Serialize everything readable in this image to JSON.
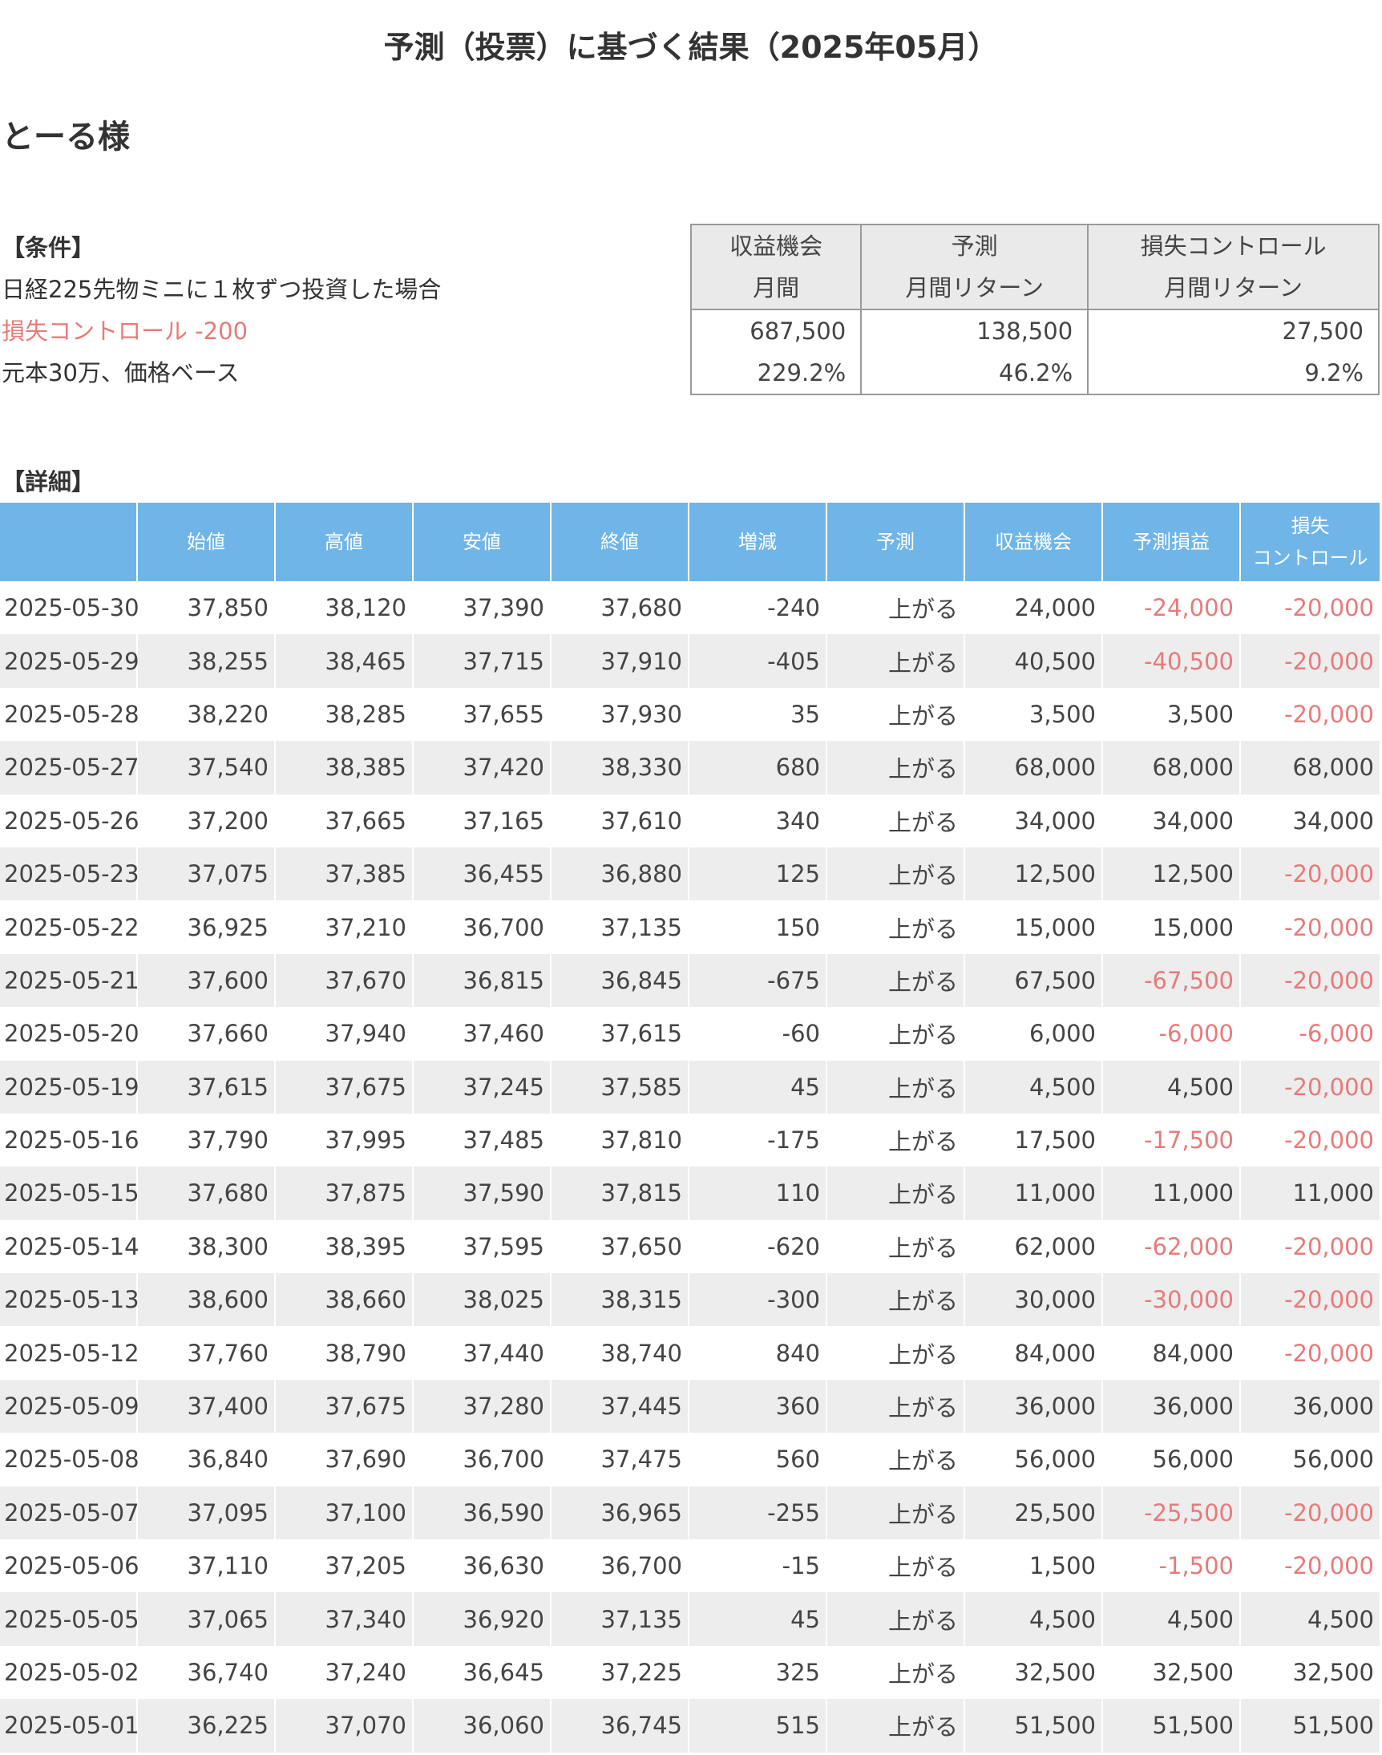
{
  "title": "予測（投票）に基づく結果（2025年05月）",
  "user_name": "とーる様",
  "conditions": {
    "heading": "【条件】",
    "line1": "日経225先物ミニに１枚ずつ投資した場合",
    "line2": "損失コントロール -200",
    "line3": "元本30万、価格ベース"
  },
  "summary": {
    "headers": [
      [
        "収益機会",
        "月間"
      ],
      [
        "予測",
        "月間リターン"
      ],
      [
        "損失コントロール",
        "月間リターン"
      ]
    ],
    "amounts": [
      "687,500",
      "138,500",
      "27,500"
    ],
    "percents": [
      "229.2%",
      "46.2%",
      "9.2%"
    ]
  },
  "detail_heading": "【詳細】",
  "detail_headers": [
    "",
    "始値",
    "高値",
    "安値",
    "終値",
    "増減",
    "予測",
    "収益機会",
    "予測損益",
    "損失\nコントロール"
  ],
  "rows": [
    [
      "2025-05-30",
      "37,850",
      "38,120",
      "37,390",
      "37,680",
      "-240",
      "上がる",
      "24,000",
      "-24,000",
      "-20,000"
    ],
    [
      "2025-05-29",
      "38,255",
      "38,465",
      "37,715",
      "37,910",
      "-405",
      "上がる",
      "40,500",
      "-40,500",
      "-20,000"
    ],
    [
      "2025-05-28",
      "38,220",
      "38,285",
      "37,655",
      "37,930",
      "35",
      "上がる",
      "3,500",
      "3,500",
      "-20,000"
    ],
    [
      "2025-05-27",
      "37,540",
      "38,385",
      "37,420",
      "38,330",
      "680",
      "上がる",
      "68,000",
      "68,000",
      "68,000"
    ],
    [
      "2025-05-26",
      "37,200",
      "37,665",
      "37,165",
      "37,610",
      "340",
      "上がる",
      "34,000",
      "34,000",
      "34,000"
    ],
    [
      "2025-05-23",
      "37,075",
      "37,385",
      "36,455",
      "36,880",
      "125",
      "上がる",
      "12,500",
      "12,500",
      "-20,000"
    ],
    [
      "2025-05-22",
      "36,925",
      "37,210",
      "36,700",
      "37,135",
      "150",
      "上がる",
      "15,000",
      "15,000",
      "-20,000"
    ],
    [
      "2025-05-21",
      "37,600",
      "37,670",
      "36,815",
      "36,845",
      "-675",
      "上がる",
      "67,500",
      "-67,500",
      "-20,000"
    ],
    [
      "2025-05-20",
      "37,660",
      "37,940",
      "37,460",
      "37,615",
      "-60",
      "上がる",
      "6,000",
      "-6,000",
      "-6,000"
    ],
    [
      "2025-05-19",
      "37,615",
      "37,675",
      "37,245",
      "37,585",
      "45",
      "上がる",
      "4,500",
      "4,500",
      "-20,000"
    ],
    [
      "2025-05-16",
      "37,790",
      "37,995",
      "37,485",
      "37,810",
      "-175",
      "上がる",
      "17,500",
      "-17,500",
      "-20,000"
    ],
    [
      "2025-05-15",
      "37,680",
      "37,875",
      "37,590",
      "37,815",
      "110",
      "上がる",
      "11,000",
      "11,000",
      "11,000"
    ],
    [
      "2025-05-14",
      "38,300",
      "38,395",
      "37,595",
      "37,650",
      "-620",
      "上がる",
      "62,000",
      "-62,000",
      "-20,000"
    ],
    [
      "2025-05-13",
      "38,600",
      "38,660",
      "38,025",
      "38,315",
      "-300",
      "上がる",
      "30,000",
      "-30,000",
      "-20,000"
    ],
    [
      "2025-05-12",
      "37,760",
      "38,790",
      "37,440",
      "38,740",
      "840",
      "上がる",
      "84,000",
      "84,000",
      "-20,000"
    ],
    [
      "2025-05-09",
      "37,400",
      "37,675",
      "37,280",
      "37,445",
      "360",
      "上がる",
      "36,000",
      "36,000",
      "36,000"
    ],
    [
      "2025-05-08",
      "36,840",
      "37,690",
      "36,700",
      "37,475",
      "560",
      "上がる",
      "56,000",
      "56,000",
      "56,000"
    ],
    [
      "2025-05-07",
      "37,095",
      "37,100",
      "36,590",
      "36,965",
      "-255",
      "上がる",
      "25,500",
      "-25,500",
      "-20,000"
    ],
    [
      "2025-05-06",
      "37,110",
      "37,205",
      "36,630",
      "36,700",
      "-15",
      "上がる",
      "1,500",
      "-1,500",
      "-20,000"
    ],
    [
      "2025-05-05",
      "37,065",
      "37,340",
      "36,920",
      "37,135",
      "45",
      "上がる",
      "4,500",
      "4,500",
      "4,500"
    ],
    [
      "2025-05-02",
      "36,740",
      "37,240",
      "36,645",
      "37,225",
      "325",
      "上がる",
      "32,500",
      "32,500",
      "32,500"
    ],
    [
      "2025-05-01",
      "36,225",
      "37,070",
      "36,060",
      "36,745",
      "515",
      "上がる",
      "51,500",
      "51,500",
      "51,500"
    ]
  ],
  "colors": {
    "header_blue": "#70b5e8",
    "negative_red": "#e87a7a",
    "stripe_gray": "#ededed"
  }
}
